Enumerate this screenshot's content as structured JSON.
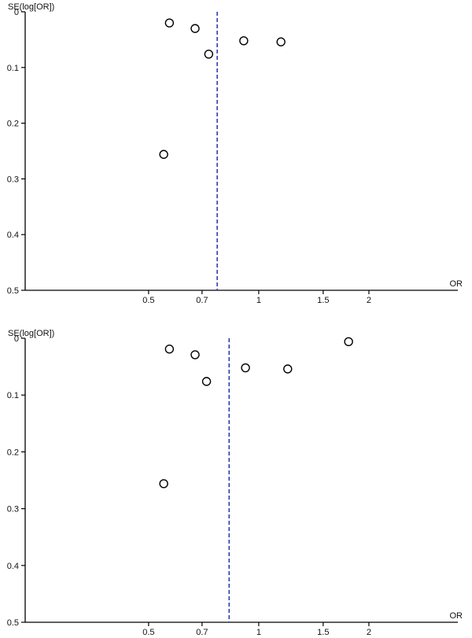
{
  "chart_data": [
    {
      "type": "scatter",
      "title": "",
      "xlabel": "OR",
      "ylabel": "SE(log[OR])",
      "x_scale": "log",
      "xlim": [
        0.23,
        3.5
      ],
      "ylim": [
        0,
        0.5
      ],
      "y_reversed": true,
      "x_ticks": [
        0.5,
        0.7,
        1,
        1.5,
        2
      ],
      "x_tick_labels": [
        "0.5",
        "0.7",
        "1",
        "1.5",
        "2"
      ],
      "y_ticks": [
        0,
        0.1,
        0.2,
        0.3,
        0.4,
        0.5
      ],
      "y_tick_labels": [
        "0",
        "0.1",
        "0.2",
        "0.3",
        "0.4",
        "0.5"
      ],
      "pooled_estimate": 0.77,
      "points": [
        {
          "x": 0.57,
          "y": 0.02
        },
        {
          "x": 0.67,
          "y": 0.03
        },
        {
          "x": 0.73,
          "y": 0.076
        },
        {
          "x": 0.91,
          "y": 0.052
        },
        {
          "x": 1.15,
          "y": 0.054
        },
        {
          "x": 0.55,
          "y": 0.256
        }
      ],
      "colors": {
        "pooled_line": "#2d3cb3",
        "points": "#000000"
      }
    },
    {
      "type": "scatter",
      "title": "",
      "xlabel": "OR",
      "ylabel": "SE(log[OR])",
      "x_scale": "log",
      "xlim": [
        0.23,
        3.5
      ],
      "ylim": [
        0,
        0.5
      ],
      "y_reversed": true,
      "x_ticks": [
        0.5,
        0.7,
        1,
        1.5,
        2
      ],
      "x_tick_labels": [
        "0.5",
        "0.7",
        "1",
        "1.5",
        "2"
      ],
      "y_ticks": [
        0,
        0.1,
        0.2,
        0.3,
        0.4,
        0.5
      ],
      "y_tick_labels": [
        "0",
        "0.1",
        "0.2",
        "0.3",
        "0.4",
        "0.5"
      ],
      "pooled_estimate": 0.83,
      "points": [
        {
          "x": 0.57,
          "y": 0.019
        },
        {
          "x": 0.67,
          "y": 0.029
        },
        {
          "x": 0.72,
          "y": 0.076
        },
        {
          "x": 0.92,
          "y": 0.052
        },
        {
          "x": 1.2,
          "y": 0.054
        },
        {
          "x": 0.55,
          "y": 0.256
        },
        {
          "x": 1.76,
          "y": 0.006
        }
      ],
      "colors": {
        "pooled_line": "#2d3cb3",
        "points": "#000000"
      }
    }
  ]
}
